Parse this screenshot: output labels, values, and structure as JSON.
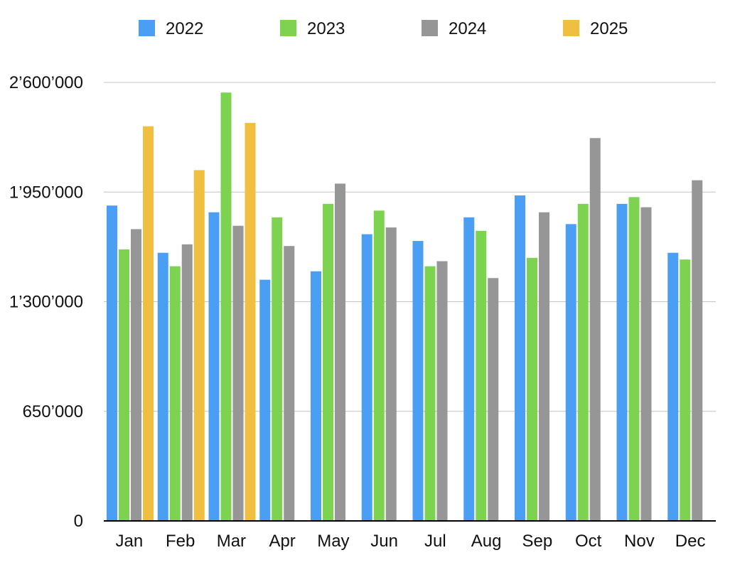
{
  "chart_data": {
    "type": "bar",
    "title": "",
    "xlabel": "",
    "ylabel": "",
    "categories": [
      "Jan",
      "Feb",
      "Mar",
      "Apr",
      "May",
      "Jun",
      "Jul",
      "Aug",
      "Sep",
      "Oct",
      "Nov",
      "Dec"
    ],
    "ylim": [
      0,
      2600000
    ],
    "yticks": [
      0,
      650000,
      1300000,
      1950000,
      2600000
    ],
    "ytick_labels": [
      "0",
      "650’000",
      "1’300’000",
      "1’950’000",
      "2’600’000"
    ],
    "grid": true,
    "legend_position": "top",
    "series": [
      {
        "name": "2022",
        "color": "#4a9ff5",
        "values": [
          1870000,
          1590000,
          1830000,
          1430000,
          1480000,
          1700000,
          1660000,
          1800000,
          1930000,
          1760000,
          1880000,
          1590000
        ]
      },
      {
        "name": "2023",
        "color": "#7dd34f",
        "values": [
          1610000,
          1510000,
          2540000,
          1800000,
          1880000,
          1840000,
          1510000,
          1720000,
          1560000,
          1880000,
          1920000,
          1550000
        ]
      },
      {
        "name": "2024",
        "color": "#969696",
        "values": [
          1730000,
          1640000,
          1750000,
          1630000,
          2000000,
          1740000,
          1540000,
          1440000,
          1830000,
          2270000,
          1860000,
          2020000
        ]
      },
      {
        "name": "2025",
        "color": "#f0be40",
        "values": [
          2340000,
          2080000,
          2360000,
          null,
          null,
          null,
          null,
          null,
          null,
          null,
          null,
          null
        ]
      }
    ]
  }
}
